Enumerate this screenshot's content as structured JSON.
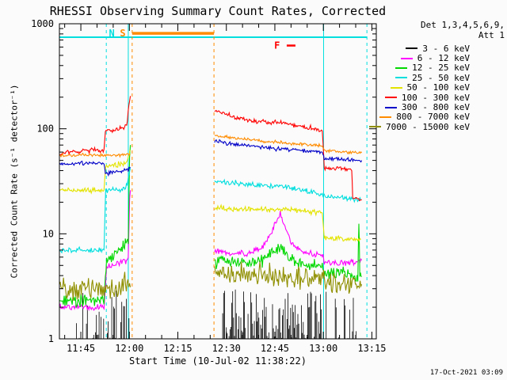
{
  "footer": {
    "timestamp": "17-Oct-2021 03:09"
  },
  "chart_data": {
    "type": "line",
    "title": "RHESSI Observing Summary Count Rates, Corrected",
    "xlabel": "Start Time (10-Jul-02 11:38:22)",
    "ylabel": "Corrected Count Rate (s⁻¹ detector⁻¹)",
    "x_unit": "minutes since 11:38:22 UT",
    "x_range": [
      0,
      98
    ],
    "y_range": [
      1,
      1000
    ],
    "y_scale": "log",
    "x_minor_start": 1.63,
    "x_minor_step": 5,
    "x_ticks": [
      {
        "t": 6.63,
        "label": "11:45"
      },
      {
        "t": 21.63,
        "label": "12:00"
      },
      {
        "t": 36.63,
        "label": "12:15"
      },
      {
        "t": 51.63,
        "label": "12:30"
      },
      {
        "t": 66.63,
        "label": "12:45"
      },
      {
        "t": 81.63,
        "label": "13:00"
      },
      {
        "t": 96.63,
        "label": "13:15"
      }
    ],
    "y_ticks": [
      {
        "v": 1,
        "label": "1"
      },
      {
        "v": 10,
        "label": "10"
      },
      {
        "v": 100,
        "label": "100"
      },
      {
        "v": 1000,
        "label": "1000"
      }
    ],
    "legend_header": [
      "Det 1,3,4,5,6,9,",
      "Att 1"
    ],
    "series": [
      {
        "label": "3 - 6 keV",
        "color": "#000000",
        "style": "spikes",
        "max": 3.0,
        "step": 0.28,
        "ranges": [
          [
            5,
            21.8,
            0.5
          ],
          [
            50.5,
            81.3,
            0.85
          ],
          [
            82.5,
            92.5,
            0.3
          ]
        ]
      },
      {
        "label": "6 - 12 keV",
        "color": "#ff00ff",
        "noise": 0.06,
        "segments": [
          [
            [
              0,
              2.0
            ],
            [
              13.8,
              2.0
            ],
            [
              14.6,
              4.8
            ],
            [
              20.5,
              5.6
            ],
            [
              21.3,
              6.0
            ],
            [
              21.7,
              22
            ],
            [
              21.95,
              26
            ]
          ],
          [
            [
              48,
              6.8
            ],
            [
              58,
              6.4
            ],
            [
              63,
              7.5
            ],
            [
              66,
              11
            ],
            [
              68.3,
              16
            ],
            [
              70,
              11
            ],
            [
              72.5,
              7.5
            ],
            [
              76,
              6.6
            ],
            [
              81.3,
              6.2
            ],
            [
              81.9,
              5.4
            ],
            [
              86,
              5.2
            ],
            [
              93.5,
              5.6
            ]
          ]
        ]
      },
      {
        "label": "12 - 25 keV",
        "color": "#00d800",
        "noise": 0.12,
        "segments": [
          [
            [
              0,
              2.3
            ],
            [
              13.8,
              2.3
            ],
            [
              14.6,
              5.5
            ],
            [
              19,
              7.5
            ],
            [
              21.3,
              8.5
            ],
            [
              21.7,
              55
            ],
            [
              21.95,
              70
            ]
          ],
          [
            [
              48,
              5.6
            ],
            [
              58,
              5.2
            ],
            [
              63,
              5.6
            ],
            [
              66,
              6.6
            ],
            [
              68.3,
              7.5
            ],
            [
              70,
              6.4
            ],
            [
              73,
              5.4
            ],
            [
              81.3,
              4.8
            ],
            [
              81.9,
              4.3
            ],
            [
              88,
              4.1
            ],
            [
              92.3,
              4.0
            ],
            [
              92.6,
              13
            ],
            [
              92.9,
              4.0
            ],
            [
              93.5,
              3.9
            ]
          ]
        ]
      },
      {
        "label": "25 - 50 keV",
        "color": "#00dede",
        "noise": 0.05,
        "segments": [
          [
            [
              0,
              7.0
            ],
            [
              13.8,
              7.0
            ],
            [
              14.3,
              26
            ],
            [
              20.5,
              27
            ],
            [
              21.6,
              38
            ],
            [
              21.95,
              42
            ]
          ],
          [
            [
              48,
              32
            ],
            [
              55,
              30
            ],
            [
              62,
              29
            ],
            [
              68.3,
              28.5
            ],
            [
              70,
              28
            ],
            [
              75,
              26
            ],
            [
              81.3,
              24
            ],
            [
              81.9,
              23
            ],
            [
              88,
              22
            ],
            [
              93.2,
              21
            ]
          ]
        ]
      },
      {
        "label": "50 - 100 keV",
        "color": "#e3e300",
        "noise": 0.05,
        "segments": [
          [
            [
              0,
              26
            ],
            [
              13.8,
              26
            ],
            [
              14.3,
              44
            ],
            [
              20.5,
              46
            ],
            [
              21.6,
              58
            ],
            [
              21.95,
              62
            ]
          ],
          [
            [
              48,
              17.5
            ],
            [
              60,
              17
            ],
            [
              70,
              17
            ],
            [
              81.3,
              16
            ],
            [
              81.9,
              9.2
            ],
            [
              88,
              9
            ],
            [
              93.2,
              8.8
            ]
          ]
        ]
      },
      {
        "label": "100 - 300 keV",
        "color": "#ff0000",
        "noise": 0.04,
        "segments": [
          [
            [
              0,
              58
            ],
            [
              8,
              62
            ],
            [
              13.8,
              63
            ],
            [
              14.2,
              95
            ],
            [
              19,
              100
            ],
            [
              20.8,
              108
            ],
            [
              21.7,
              185
            ],
            [
              21.95,
              205
            ]
          ],
          [
            [
              48,
              148
            ],
            [
              53,
              132
            ],
            [
              59,
              120
            ],
            [
              64,
              114
            ],
            [
              67,
              115
            ],
            [
              70,
              112
            ],
            [
              75,
              105
            ],
            [
              81.3,
              96
            ],
            [
              81.9,
              43
            ],
            [
              86,
              42
            ],
            [
              90.4,
              41
            ],
            [
              90.7,
              22
            ],
            [
              93.5,
              21
            ]
          ]
        ]
      },
      {
        "label": "300 - 800 keV",
        "color": "#0000c8",
        "noise": 0.035,
        "segments": [
          [
            [
              0,
              46
            ],
            [
              10,
              47
            ],
            [
              13.8,
              47
            ],
            [
              14.2,
              38
            ],
            [
              18,
              39
            ],
            [
              21.3,
              41
            ],
            [
              21.95,
              43
            ]
          ],
          [
            [
              48,
              76
            ],
            [
              55,
              71
            ],
            [
              62,
              67
            ],
            [
              70,
              64
            ],
            [
              76,
              62
            ],
            [
              81.3,
              60
            ],
            [
              81.9,
              52
            ],
            [
              88,
              51
            ],
            [
              93.5,
              50
            ]
          ]
        ]
      },
      {
        "label": "800 - 7000 keV",
        "color": "#ff8c00",
        "noise": 0.03,
        "segments": [
          [
            [
              0,
              55
            ],
            [
              8,
              56
            ],
            [
              13.8,
              56
            ],
            [
              16,
              56
            ],
            [
              21.95,
              57
            ]
          ],
          [
            [
              48,
              85
            ],
            [
              55,
              81
            ],
            [
              62,
              77
            ],
            [
              70,
              73
            ],
            [
              76,
              71
            ],
            [
              81.3,
              69
            ],
            [
              81.9,
              62
            ],
            [
              88,
              60
            ],
            [
              93.5,
              59
            ]
          ]
        ]
      },
      {
        "label": "7000 - 15000 keV",
        "color": "#8f8f00",
        "noise": 0.22,
        "segments": [
          [
            [
              0,
              2.9
            ],
            [
              10,
              3.0
            ],
            [
              21.95,
              3.1
            ]
          ],
          [
            [
              48,
              4.3
            ],
            [
              60,
              4.1
            ],
            [
              70,
              3.9
            ],
            [
              81.3,
              3.7
            ],
            [
              81.9,
              3.4
            ],
            [
              93.5,
              3.3
            ]
          ]
        ]
      }
    ],
    "flags": {
      "vlines": [
        {
          "t": 14.5,
          "color": "#00dede",
          "dash": true
        },
        {
          "t": 21.3,
          "color": "#00dede",
          "dash": false
        },
        {
          "t": 22.5,
          "color": "#ff8c00",
          "dash": true
        },
        {
          "t": 47.8,
          "color": "#ff8c00",
          "dash": true
        },
        {
          "t": 81.7,
          "color": "#00dede",
          "dash": false
        },
        {
          "t": 95.1,
          "color": "#00dede",
          "dash": true
        }
      ],
      "hlines": [
        {
          "t1": 0,
          "t2": 95.1,
          "v": 745,
          "color": "#00dede",
          "w": 2
        },
        {
          "t1": 22.5,
          "t2": 47.8,
          "v": 810,
          "color": "#ff8c00",
          "w": 3.5
        },
        {
          "t1": 70.3,
          "t2": 73.0,
          "v": 620,
          "color": "#ff0000",
          "w": 2.5
        }
      ],
      "labels": [
        {
          "t": 16.2,
          "v": 810,
          "text": "N",
          "color": "#00dede"
        },
        {
          "t": 19.6,
          "v": 810,
          "text": "S",
          "color": "#ff8c00"
        },
        {
          "t": 67.3,
          "v": 620,
          "text": "F",
          "color": "#ff0000"
        }
      ]
    }
  }
}
